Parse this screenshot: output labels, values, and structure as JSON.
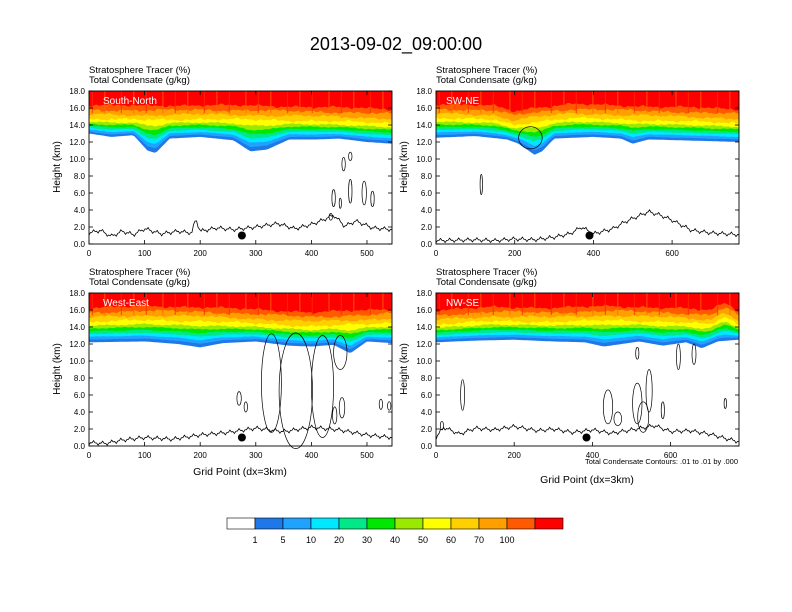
{
  "title": "2013-09-02_09:00:00",
  "colors": {
    "levels": [
      "#ffffff",
      "#1f78e8",
      "#1fa3ff",
      "#00e8ff",
      "#00e887",
      "#00e800",
      "#9be800",
      "#ffff00",
      "#ffd000",
      "#ffa000",
      "#ff5a00",
      "#ff0000"
    ],
    "contour": "#000000",
    "marker": "#000000"
  },
  "chart_data": [
    {
      "type": "contour-cross-section",
      "panel": "South-North",
      "var_line1": "Stratosphere Tracer   (%)",
      "var_line2": "Total Condensate   (g/kg)",
      "xlabel": "",
      "ylabel": "Height (km)",
      "xlim": [
        0,
        545
      ],
      "ylim": [
        0,
        18
      ],
      "xticks": [
        0,
        100,
        200,
        300,
        400,
        500
      ],
      "yticks": [
        "0.0",
        "2.0",
        "4.0",
        "6.0",
        "8.0",
        "10.0",
        "12.0",
        "14.0",
        "16.0",
        "18.0"
      ],
      "tracer_base_km": [
        [
          0,
          13.0
        ],
        [
          40,
          12.6
        ],
        [
          80,
          12.8
        ],
        [
          105,
          11.0
        ],
        [
          120,
          10.7
        ],
        [
          145,
          12.4
        ],
        [
          200,
          12.6
        ],
        [
          260,
          12.2
        ],
        [
          290,
          10.9
        ],
        [
          320,
          11.1
        ],
        [
          360,
          12.3
        ],
        [
          410,
          12.3
        ],
        [
          450,
          12.4
        ],
        [
          500,
          12.0
        ],
        [
          545,
          11.8
        ]
      ],
      "tropopause_km": [
        [
          0,
          14.7
        ],
        [
          100,
          14.6
        ],
        [
          200,
          14.7
        ],
        [
          300,
          14.6
        ],
        [
          400,
          14.5
        ],
        [
          500,
          14.3
        ],
        [
          545,
          14.2
        ]
      ],
      "terrain_km": [
        [
          0,
          1.3
        ],
        [
          20,
          1.6
        ],
        [
          40,
          0.9
        ],
        [
          60,
          1.5
        ],
        [
          80,
          1.1
        ],
        [
          100,
          1.8
        ],
        [
          130,
          1.2
        ],
        [
          160,
          1.5
        ],
        [
          185,
          1.3
        ],
        [
          192,
          3.0
        ],
        [
          200,
          1.5
        ],
        [
          230,
          1.9
        ],
        [
          260,
          1.7
        ],
        [
          300,
          2.0
        ],
        [
          340,
          2.4
        ],
        [
          370,
          1.8
        ],
        [
          400,
          2.3
        ],
        [
          420,
          2.8
        ],
        [
          440,
          3.4
        ],
        [
          460,
          2.1
        ],
        [
          480,
          2.7
        ],
        [
          510,
          1.9
        ],
        [
          545,
          1.7
        ]
      ],
      "condensate_ellipses": [
        [
          458,
          9.4,
          3,
          0.8
        ],
        [
          470,
          10.3,
          3,
          0.5
        ],
        [
          440,
          5.4,
          3,
          1.0
        ],
        [
          452,
          4.8,
          2,
          0.6
        ],
        [
          470,
          6.2,
          3,
          1.4
        ],
        [
          495,
          6.0,
          4,
          1.4
        ],
        [
          510,
          5.3,
          3,
          0.9
        ],
        [
          435,
          3.2,
          3,
          0.4
        ]
      ],
      "marker": [
        275,
        1.0
      ]
    },
    {
      "type": "contour-cross-section",
      "panel": "SW-NE",
      "var_line1": "Stratosphere Tracer   (%)",
      "var_line2": "Total Condensate   (g/kg)",
      "xlabel": "",
      "ylabel": "Height (km)",
      "xlim": [
        0,
        770
      ],
      "ylim": [
        0,
        18
      ],
      "xticks": [
        0,
        200,
        400,
        600
      ],
      "yticks": [
        "0.0",
        "2.0",
        "4.0",
        "6.0",
        "8.0",
        "10.0",
        "12.0",
        "14.0",
        "16.0",
        "18.0"
      ],
      "tracer_base_km": [
        [
          0,
          12.5
        ],
        [
          100,
          12.7
        ],
        [
          180,
          12.3
        ],
        [
          210,
          11.8
        ],
        [
          250,
          10.5
        ],
        [
          270,
          10.9
        ],
        [
          300,
          12.4
        ],
        [
          400,
          12.6
        ],
        [
          470,
          12.4
        ],
        [
          500,
          11.8
        ],
        [
          540,
          12.3
        ],
        [
          620,
          12.2
        ],
        [
          700,
          12.1
        ],
        [
          770,
          12.0
        ]
      ],
      "tropopause_km": [
        [
          0,
          14.8
        ],
        [
          150,
          14.6
        ],
        [
          200,
          14.0
        ],
        [
          250,
          14.4
        ],
        [
          350,
          14.8
        ],
        [
          500,
          14.6
        ],
        [
          650,
          14.4
        ],
        [
          770,
          14.2
        ]
      ],
      "terrain_km": [
        [
          0,
          0.4
        ],
        [
          100,
          0.5
        ],
        [
          150,
          0.4
        ],
        [
          200,
          0.6
        ],
        [
          250,
          0.5
        ],
        [
          300,
          0.8
        ],
        [
          340,
          1.2
        ],
        [
          370,
          2.0
        ],
        [
          400,
          1.2
        ],
        [
          450,
          1.8
        ],
        [
          480,
          2.6
        ],
        [
          510,
          3.2
        ],
        [
          540,
          3.8
        ],
        [
          570,
          3.4
        ],
        [
          600,
          2.8
        ],
        [
          650,
          1.6
        ],
        [
          700,
          1.3
        ],
        [
          770,
          1.1
        ]
      ],
      "condensate_ellipses": [
        [
          115,
          7.0,
          3,
          1.2
        ],
        [
          240,
          12.5,
          30,
          1.3
        ]
      ],
      "marker": [
        390,
        1.0
      ]
    },
    {
      "type": "contour-cross-section",
      "panel": "West-East",
      "var_line1": "Stratosphere Tracer   (%)",
      "var_line2": "Total Condensate   (g/kg)",
      "xlabel": "Grid Point (dx=3km)",
      "ylabel": "Height (km)",
      "xlim": [
        0,
        545
      ],
      "ylim": [
        0,
        18
      ],
      "xticks": [
        0,
        100,
        200,
        300,
        400,
        500
      ],
      "yticks": [
        "0.0",
        "2.0",
        "4.0",
        "6.0",
        "8.0",
        "10.0",
        "12.0",
        "14.0",
        "16.0",
        "18.0"
      ],
      "tracer_base_km": [
        [
          0,
          12.2
        ],
        [
          100,
          12.3
        ],
        [
          160,
          12.0
        ],
        [
          200,
          11.6
        ],
        [
          240,
          12.1
        ],
        [
          300,
          12.3
        ],
        [
          360,
          11.8
        ],
        [
          400,
          11.7
        ],
        [
          440,
          11.9
        ],
        [
          470,
          10.9
        ],
        [
          500,
          12.3
        ],
        [
          545,
          12.1
        ]
      ],
      "tropopause_km": [
        [
          0,
          14.6
        ],
        [
          100,
          14.8
        ],
        [
          200,
          14.7
        ],
        [
          300,
          14.4
        ],
        [
          400,
          14.1
        ],
        [
          500,
          14.3
        ],
        [
          545,
          14.5
        ]
      ],
      "terrain_km": [
        [
          0,
          0.4
        ],
        [
          30,
          0.3
        ],
        [
          60,
          0.7
        ],
        [
          100,
          1.0
        ],
        [
          150,
          0.8
        ],
        [
          200,
          1.3
        ],
        [
          250,
          1.6
        ],
        [
          300,
          2.1
        ],
        [
          350,
          1.7
        ],
        [
          400,
          2.2
        ],
        [
          450,
          1.9
        ],
        [
          500,
          1.3
        ],
        [
          545,
          1.0
        ]
      ],
      "condensate_ellipses": [
        [
          328,
          7.4,
          18,
          5.8
        ],
        [
          372,
          6.5,
          30,
          6.8
        ],
        [
          420,
          7.0,
          20,
          6.0
        ],
        [
          452,
          11.0,
          12,
          2.0
        ],
        [
          455,
          4.5,
          5,
          1.2
        ],
        [
          442,
          3.6,
          4,
          1.0
        ],
        [
          270,
          5.6,
          4,
          0.8
        ],
        [
          282,
          4.6,
          3,
          0.6
        ],
        [
          525,
          4.9,
          3,
          0.6
        ],
        [
          540,
          4.7,
          3,
          0.5
        ]
      ],
      "marker": [
        275,
        1.0
      ]
    },
    {
      "type": "contour-cross-section",
      "panel": "NW-SE",
      "var_line1": "Stratosphere Tracer   (%)",
      "var_line2": "Total Condensate   (g/kg)",
      "xlabel": "Grid Point (dx=3km)",
      "ylabel": "Height (km)",
      "xlim": [
        0,
        775
      ],
      "ylim": [
        0,
        18
      ],
      "xticks": [
        0,
        200,
        400,
        600
      ],
      "yticks": [
        "0.0",
        "2.0",
        "4.0",
        "6.0",
        "8.0",
        "10.0",
        "12.0",
        "14.0",
        "16.0",
        "18.0"
      ],
      "tracer_base_km": [
        [
          0,
          12.2
        ],
        [
          100,
          12.4
        ],
        [
          200,
          12.5
        ],
        [
          300,
          12.3
        ],
        [
          380,
          12.2
        ],
        [
          430,
          11.7
        ],
        [
          520,
          12.3
        ],
        [
          580,
          11.8
        ],
        [
          640,
          12.2
        ],
        [
          680,
          11.5
        ],
        [
          720,
          12.3
        ],
        [
          775,
          12.5
        ]
      ],
      "tropopause_km": [
        [
          0,
          14.3
        ],
        [
          150,
          14.7
        ],
        [
          300,
          14.6
        ],
        [
          450,
          14.8
        ],
        [
          600,
          14.6
        ],
        [
          700,
          14.3
        ],
        [
          740,
          15.2
        ],
        [
          775,
          14.2
        ]
      ],
      "terrain_km": [
        [
          0,
          1.0
        ],
        [
          20,
          2.2
        ],
        [
          60,
          1.4
        ],
        [
          100,
          2.1
        ],
        [
          150,
          1.9
        ],
        [
          200,
          2.3
        ],
        [
          260,
          1.8
        ],
        [
          300,
          2.0
        ],
        [
          350,
          1.6
        ],
        [
          400,
          1.9
        ],
        [
          450,
          1.5
        ],
        [
          500,
          1.9
        ],
        [
          560,
          2.4
        ],
        [
          600,
          1.7
        ],
        [
          650,
          1.8
        ],
        [
          700,
          1.4
        ],
        [
          740,
          0.9
        ],
        [
          775,
          0.5
        ]
      ],
      "condensate_ellipses": [
        [
          68,
          6.0,
          5,
          1.8
        ],
        [
          440,
          4.6,
          12,
          2.0
        ],
        [
          465,
          3.2,
          10,
          0.8
        ],
        [
          515,
          5.0,
          12,
          2.4
        ],
        [
          530,
          3.4,
          14,
          1.8
        ],
        [
          545,
          6.5,
          8,
          2.5
        ],
        [
          580,
          4.2,
          4,
          1.0
        ],
        [
          620,
          10.5,
          5,
          1.5
        ],
        [
          660,
          10.8,
          5,
          1.2
        ],
        [
          515,
          10.9,
          4,
          0.7
        ],
        [
          740,
          5.0,
          3,
          0.6
        ],
        [
          15,
          2.4,
          4,
          0.5
        ]
      ],
      "marker": [
        385,
        1.0
      ],
      "footnote": "Total Condensate Contours: .01 to .01 by .000"
    }
  ],
  "colorbar": {
    "labels": [
      "1",
      "5",
      "10",
      "20",
      "30",
      "40",
      "50",
      "60",
      "70",
      "100"
    ]
  }
}
